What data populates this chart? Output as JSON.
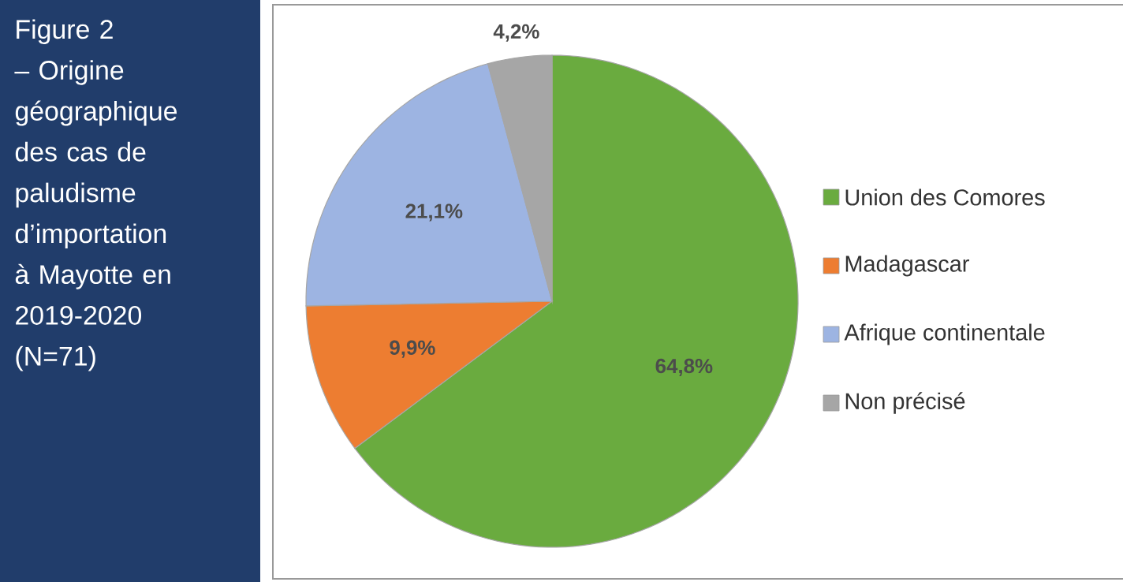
{
  "chart_data": {
    "type": "pie",
    "title": "Figure 2 – Origine géographique des cas de paludisme d’importation à Mayotte en 2019-2020 (N=71)",
    "categories": [
      "Union des Comores",
      "Madagascar",
      "Afrique continentale",
      "Non précisé"
    ],
    "values": [
      64.8,
      9.9,
      21.1,
      4.2
    ],
    "colors": [
      "#6aab3f",
      "#ed7d31",
      "#9db4e2",
      "#a6a6a6"
    ],
    "value_labels": [
      "64,8%",
      "9,9%",
      "21,1%",
      "4,2%"
    ],
    "legend": "right"
  }
}
